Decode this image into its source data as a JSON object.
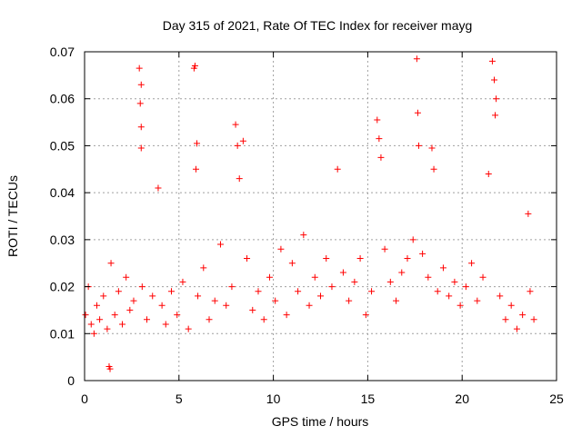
{
  "chart_data": {
    "type": "scatter",
    "title": "Day 315 of 2021, Rate Of TEC Index for receiver mayg",
    "xlabel": "GPS time / hours",
    "ylabel": "ROTI / TECUs",
    "xlim": [
      0,
      25
    ],
    "ylim": [
      0,
      0.07
    ],
    "xticks": [
      0,
      5,
      10,
      15,
      20,
      25
    ],
    "yticks": [
      0,
      0.01,
      0.02,
      0.03,
      0.04,
      0.05,
      0.06,
      0.07
    ],
    "xtick_labels": [
      "0",
      "5",
      "10",
      "15",
      "20",
      "25"
    ],
    "ytick_labels": [
      "0",
      "0.01",
      "0.02",
      "0.03",
      "0.04",
      "0.05",
      "0.06",
      "0.07"
    ],
    "grid": true,
    "legend": "none",
    "marker": "plus",
    "color": "#ff0000",
    "series": [
      {
        "x": [
          0.05,
          0.2,
          0.35,
          0.5,
          0.65,
          0.8,
          1.0,
          1.2,
          1.3,
          1.35,
          1.4,
          1.6,
          1.8,
          2.0,
          2.2,
          2.4,
          2.6,
          2.9,
          2.95,
          3.0,
          3.0,
          3.0,
          3.05,
          3.3,
          3.6,
          3.9,
          4.1,
          4.3,
          4.6,
          4.9,
          5.2,
          5.5,
          5.8,
          5.85,
          5.9,
          5.95,
          6.0,
          6.3,
          6.6,
          6.9,
          7.2,
          7.5,
          7.8,
          8.0,
          8.1,
          8.2,
          8.4,
          8.6,
          8.9,
          9.2,
          9.5,
          9.8,
          10.1,
          10.4,
          10.7,
          11.0,
          11.3,
          11.6,
          11.9,
          12.2,
          12.5,
          12.8,
          13.1,
          13.4,
          13.7,
          14.0,
          14.3,
          14.6,
          14.9,
          15.2,
          15.5,
          15.6,
          15.7,
          15.9,
          16.2,
          16.5,
          16.8,
          17.1,
          17.4,
          17.6,
          17.65,
          17.7,
          17.9,
          18.2,
          18.4,
          18.5,
          18.7,
          19.0,
          19.3,
          19.6,
          19.9,
          20.2,
          20.5,
          20.8,
          21.1,
          21.4,
          21.6,
          21.7,
          21.75,
          21.8,
          22.0,
          22.3,
          22.6,
          22.9,
          23.2,
          23.5,
          23.6,
          23.8
        ],
        "y": [
          0.014,
          0.02,
          0.012,
          0.01,
          0.016,
          0.013,
          0.018,
          0.011,
          0.003,
          0.0025,
          0.025,
          0.014,
          0.019,
          0.012,
          0.022,
          0.015,
          0.017,
          0.0665,
          0.059,
          0.054,
          0.0495,
          0.063,
          0.02,
          0.013,
          0.018,
          0.041,
          0.016,
          0.012,
          0.019,
          0.014,
          0.021,
          0.011,
          0.0665,
          0.067,
          0.045,
          0.0505,
          0.018,
          0.024,
          0.013,
          0.017,
          0.029,
          0.016,
          0.02,
          0.0545,
          0.05,
          0.043,
          0.051,
          0.026,
          0.015,
          0.019,
          0.013,
          0.022,
          0.017,
          0.028,
          0.014,
          0.025,
          0.019,
          0.031,
          0.016,
          0.022,
          0.018,
          0.026,
          0.02,
          0.045,
          0.023,
          0.017,
          0.021,
          0.026,
          0.014,
          0.019,
          0.0555,
          0.0515,
          0.0475,
          0.028,
          0.021,
          0.017,
          0.023,
          0.026,
          0.03,
          0.0685,
          0.057,
          0.05,
          0.027,
          0.022,
          0.0495,
          0.045,
          0.019,
          0.024,
          0.018,
          0.021,
          0.016,
          0.02,
          0.025,
          0.017,
          0.022,
          0.044,
          0.068,
          0.064,
          0.0565,
          0.06,
          0.018,
          0.013,
          0.016,
          0.011,
          0.014,
          0.0355,
          0.019,
          0.013
        ]
      }
    ]
  }
}
